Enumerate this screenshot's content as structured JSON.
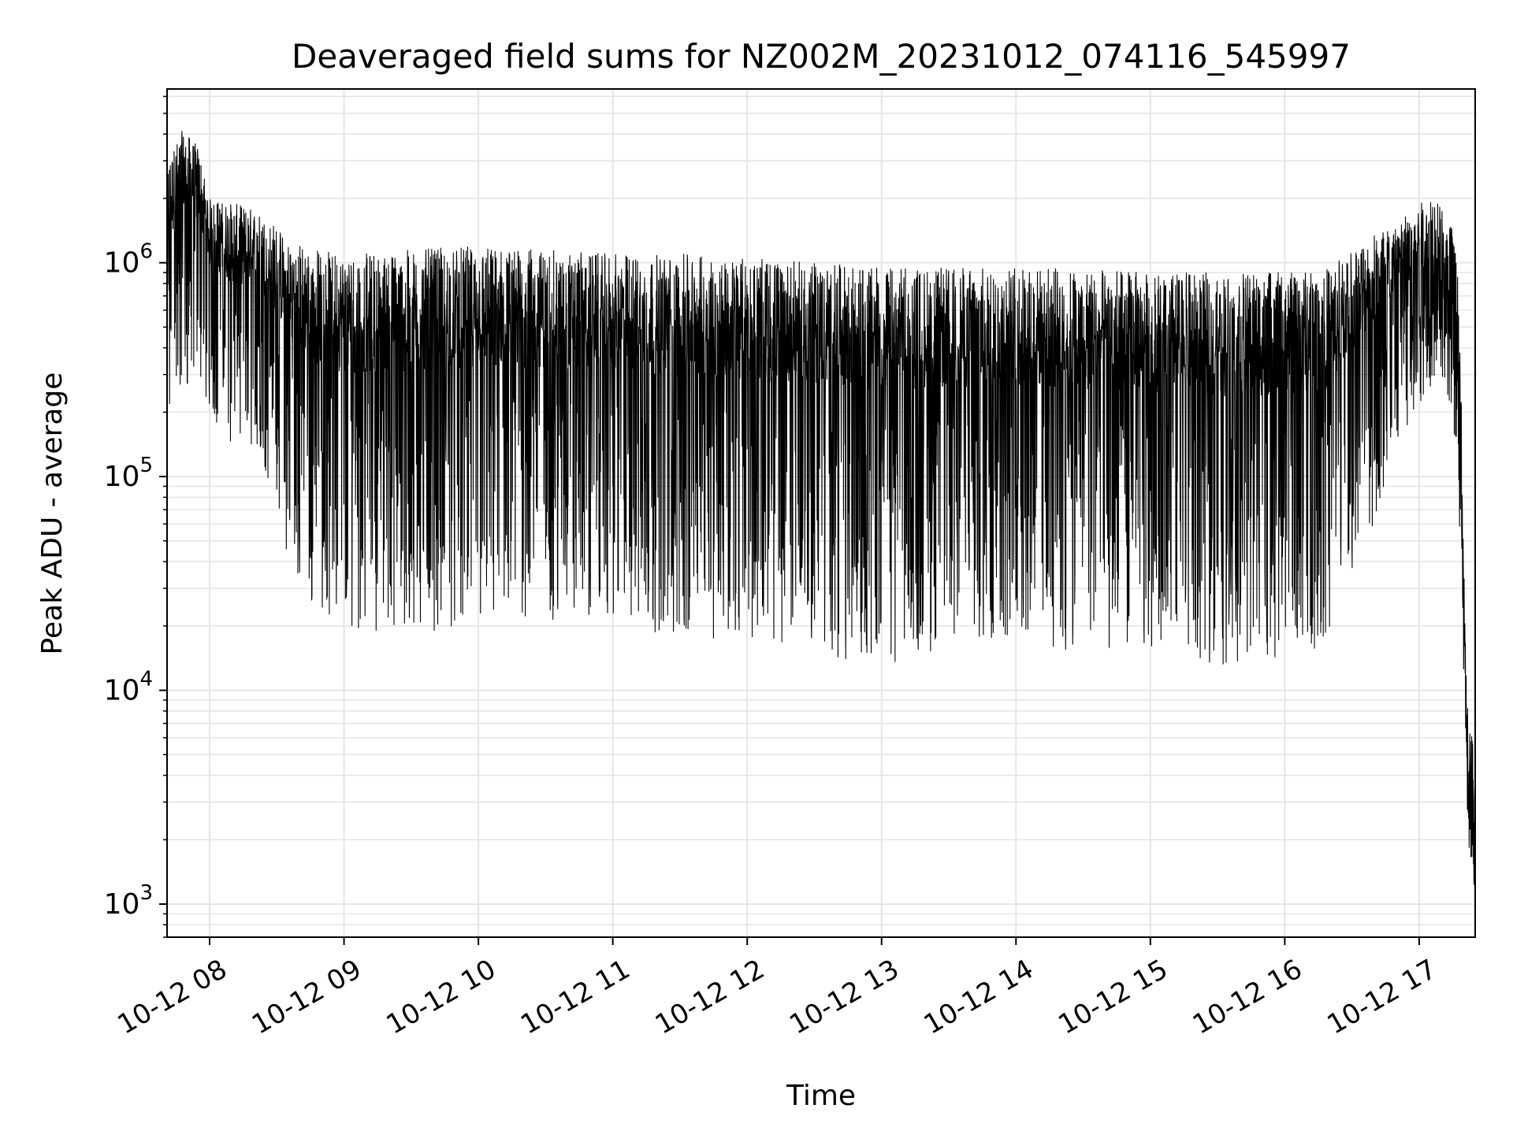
{
  "chart_data": {
    "type": "line",
    "title": "Deaveraged field sums for NZ002M_20231012_074116_545997",
    "xlabel": "Time",
    "ylabel": "Peak ADU - average",
    "yscale": "log",
    "ylim": [
      700,
      6500000
    ],
    "xlim": [
      "2023-10-12 07:41",
      "2023-10-12 17:25"
    ],
    "grid": true,
    "legend": "none",
    "line_color": "#000000",
    "grid_color": "#e5e5e5",
    "x_ticks": [
      {
        "value": "2023-10-12 08:00",
        "label": "10-12 08"
      },
      {
        "value": "2023-10-12 09:00",
        "label": "10-12 09"
      },
      {
        "value": "2023-10-12 10:00",
        "label": "10-12 10"
      },
      {
        "value": "2023-10-12 11:00",
        "label": "10-12 11"
      },
      {
        "value": "2023-10-12 12:00",
        "label": "10-12 12"
      },
      {
        "value": "2023-10-12 13:00",
        "label": "10-12 13"
      },
      {
        "value": "2023-10-12 14:00",
        "label": "10-12 14"
      },
      {
        "value": "2023-10-12 15:00",
        "label": "10-12 15"
      },
      {
        "value": "2023-10-12 16:00",
        "label": "10-12 16"
      },
      {
        "value": "2023-10-12 17:00",
        "label": "10-12 17"
      }
    ],
    "y_ticks": [
      {
        "value": 1000,
        "base": "10",
        "exp": "3"
      },
      {
        "value": 10000,
        "base": "10",
        "exp": "4"
      },
      {
        "value": 100000,
        "base": "10",
        "exp": "5"
      },
      {
        "value": 1000000,
        "base": "10",
        "exp": "6"
      }
    ],
    "series": [
      {
        "envelope": [
          {
            "t": "2023-10-12 07:41",
            "low": 140000,
            "high": 3000000
          },
          {
            "t": "2023-10-12 07:48",
            "low": 250000,
            "high": 4200000
          },
          {
            "t": "2023-10-12 07:55",
            "low": 250000,
            "high": 3500000
          },
          {
            "t": "2023-10-12 08:00",
            "low": 200000,
            "high": 2000000
          },
          {
            "t": "2023-10-12 08:10",
            "low": 130000,
            "high": 1900000
          },
          {
            "t": "2023-10-12 08:20",
            "low": 130000,
            "high": 1800000
          },
          {
            "t": "2023-10-12 08:30",
            "low": 80000,
            "high": 1500000
          },
          {
            "t": "2023-10-12 08:35",
            "low": 40000,
            "high": 1300000
          },
          {
            "t": "2023-10-12 08:45",
            "low": 25000,
            "high": 1200000
          },
          {
            "t": "2023-10-12 09:00",
            "low": 20000,
            "high": 1100000
          },
          {
            "t": "2023-10-12 09:30",
            "low": 18000,
            "high": 1150000
          },
          {
            "t": "2023-10-12 10:00",
            "low": 21000,
            "high": 1200000
          },
          {
            "t": "2023-10-12 10:30",
            "low": 21000,
            "high": 1150000
          },
          {
            "t": "2023-10-12 11:00",
            "low": 22000,
            "high": 1100000
          },
          {
            "t": "2023-10-12 11:30",
            "low": 17000,
            "high": 1100000
          },
          {
            "t": "2023-10-12 12:00",
            "low": 18000,
            "high": 1050000
          },
          {
            "t": "2023-10-12 12:30",
            "low": 15000,
            "high": 1000000
          },
          {
            "t": "2023-10-12 13:00",
            "low": 13000,
            "high": 950000
          },
          {
            "t": "2023-10-12 13:30",
            "low": 16000,
            "high": 950000
          },
          {
            "t": "2023-10-12 14:00",
            "low": 16000,
            "high": 950000
          },
          {
            "t": "2023-10-12 14:30",
            "low": 15000,
            "high": 950000
          },
          {
            "t": "2023-10-12 15:00",
            "low": 16000,
            "high": 900000
          },
          {
            "t": "2023-10-12 15:30",
            "low": 13000,
            "high": 900000
          },
          {
            "t": "2023-10-12 16:00",
            "low": 14000,
            "high": 900000
          },
          {
            "t": "2023-10-12 16:20",
            "low": 16000,
            "high": 950000
          },
          {
            "t": "2023-10-12 16:30",
            "low": 35000,
            "high": 1200000
          },
          {
            "t": "2023-10-12 16:45",
            "low": 80000,
            "high": 1500000
          },
          {
            "t": "2023-10-12 17:00",
            "low": 200000,
            "high": 1900000
          },
          {
            "t": "2023-10-12 17:10",
            "low": 300000,
            "high": 2000000
          },
          {
            "t": "2023-10-12 17:15",
            "low": 200000,
            "high": 1500000
          },
          {
            "t": "2023-10-12 17:18",
            "low": 60000,
            "high": 700000
          },
          {
            "t": "2023-10-12 17:20",
            "low": 8000,
            "high": 40000
          },
          {
            "t": "2023-10-12 17:22",
            "low": 1800,
            "high": 7000
          },
          {
            "t": "2023-10-12 17:25",
            "low": 1000,
            "high": 6000
          }
        ]
      }
    ]
  }
}
